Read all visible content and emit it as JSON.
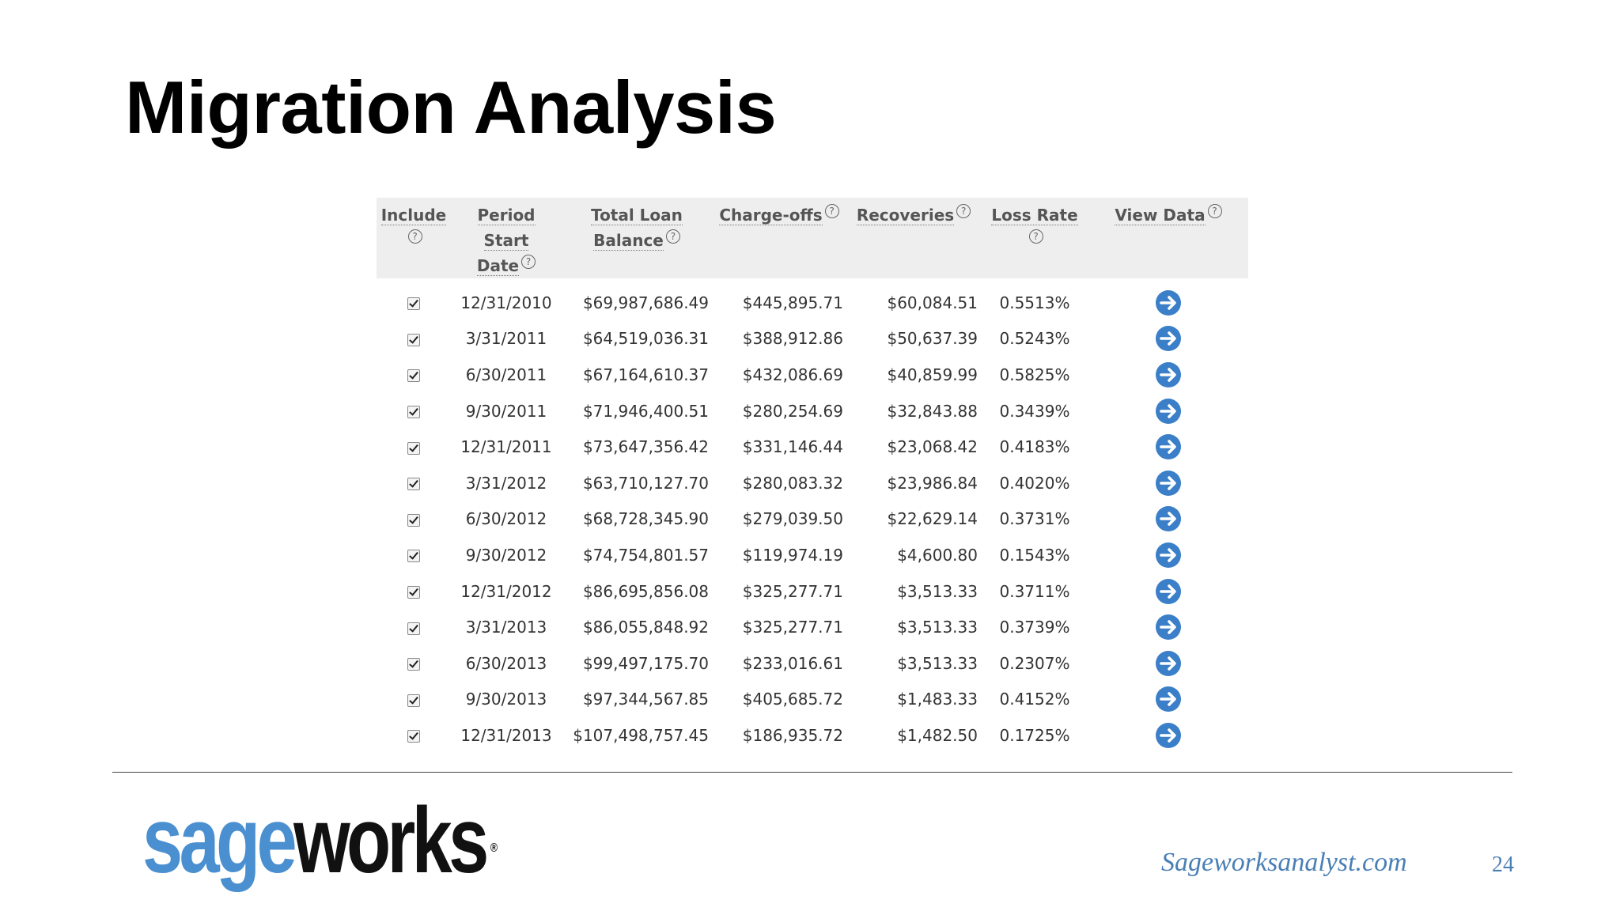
{
  "title": "Migration Analysis",
  "table": {
    "headers": {
      "include": "Include",
      "period_line1": "Period Start",
      "period_line2": "Date",
      "balance_line1": "Total Loan",
      "balance_line2": "Balance",
      "chargeoffs": "Charge-offs",
      "recoveries": "Recoveries",
      "loss_rate": "Loss Rate",
      "view_data": "View Data"
    },
    "help_glyph": "?",
    "rows": [
      {
        "date": "12/31/2010",
        "balance": "$69,987,686.49",
        "chargeoffs": "$445,895.71",
        "recoveries": "$60,084.51",
        "loss_rate": "0.5513%"
      },
      {
        "date": "3/31/2011",
        "balance": "$64,519,036.31",
        "chargeoffs": "$388,912.86",
        "recoveries": "$50,637.39",
        "loss_rate": "0.5243%"
      },
      {
        "date": "6/30/2011",
        "balance": "$67,164,610.37",
        "chargeoffs": "$432,086.69",
        "recoveries": "$40,859.99",
        "loss_rate": "0.5825%"
      },
      {
        "date": "9/30/2011",
        "balance": "$71,946,400.51",
        "chargeoffs": "$280,254.69",
        "recoveries": "$32,843.88",
        "loss_rate": "0.3439%"
      },
      {
        "date": "12/31/2011",
        "balance": "$73,647,356.42",
        "chargeoffs": "$331,146.44",
        "recoveries": "$23,068.42",
        "loss_rate": "0.4183%"
      },
      {
        "date": "3/31/2012",
        "balance": "$63,710,127.70",
        "chargeoffs": "$280,083.32",
        "recoveries": "$23,986.84",
        "loss_rate": "0.4020%"
      },
      {
        "date": "6/30/2012",
        "balance": "$68,728,345.90",
        "chargeoffs": "$279,039.50",
        "recoveries": "$22,629.14",
        "loss_rate": "0.3731%"
      },
      {
        "date": "9/30/2012",
        "balance": "$74,754,801.57",
        "chargeoffs": "$119,974.19",
        "recoveries": "$4,600.80",
        "loss_rate": "0.1543%"
      },
      {
        "date": "12/31/2012",
        "balance": "$86,695,856.08",
        "chargeoffs": "$325,277.71",
        "recoveries": "$3,513.33",
        "loss_rate": "0.3711%"
      },
      {
        "date": "3/31/2013",
        "balance": "$86,055,848.92",
        "chargeoffs": "$325,277.71",
        "recoveries": "$3,513.33",
        "loss_rate": "0.3739%"
      },
      {
        "date": "6/30/2013",
        "balance": "$99,497,175.70",
        "chargeoffs": "$233,016.61",
        "recoveries": "$3,513.33",
        "loss_rate": "0.2307%"
      },
      {
        "date": "9/30/2013",
        "balance": "$97,344,567.85",
        "chargeoffs": "$405,685.72",
        "recoveries": "$1,483.33",
        "loss_rate": "0.4152%"
      },
      {
        "date": "12/31/2013",
        "balance": "$107,498,757.45",
        "chargeoffs": "$186,935.72",
        "recoveries": "$1,482.50",
        "loss_rate": "0.1725%"
      }
    ],
    "icons": {
      "include": "checkbox-checked",
      "view": "arrow-right-circle-icon",
      "help": "help-icon"
    }
  },
  "footer": {
    "logo_part1": "sage",
    "logo_part2": "works",
    "logo_reg": "®",
    "site": "Sageworksanalyst.com",
    "page_number": "24"
  },
  "colors": {
    "accent": "#3a7fc8",
    "logo_blue": "#4a8fd0",
    "link": "#4a7fb5",
    "header_bg": "#eeeeee"
  }
}
